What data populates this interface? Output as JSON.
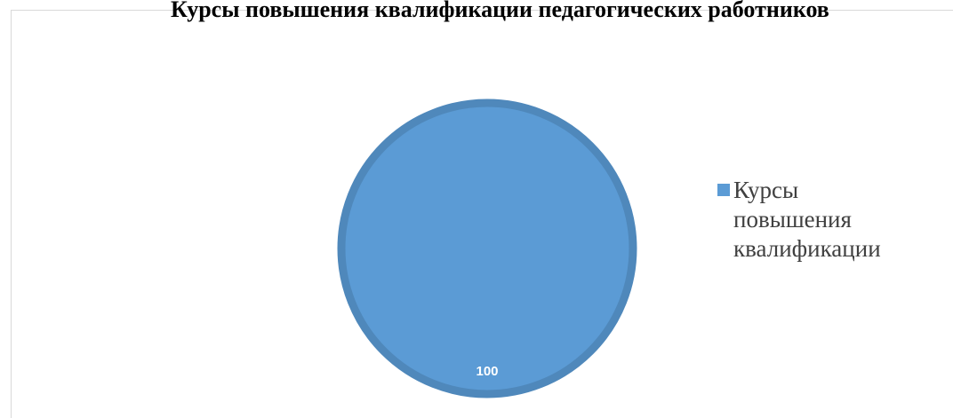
{
  "chart_data": {
    "type": "pie",
    "title": "Курсы повышения квалификации педагогических работников",
    "categories": [
      "Курсы повышения квалификации"
    ],
    "values": [
      100
    ],
    "data_labels": [
      "100"
    ],
    "colors": {
      "slice": "#5b9bd5",
      "slice_border": "#4f88bb",
      "data_label": "#ffffff"
    },
    "legend": {
      "position": "right",
      "entries": [
        "Курсы\nповышения\nквалификации"
      ]
    }
  }
}
